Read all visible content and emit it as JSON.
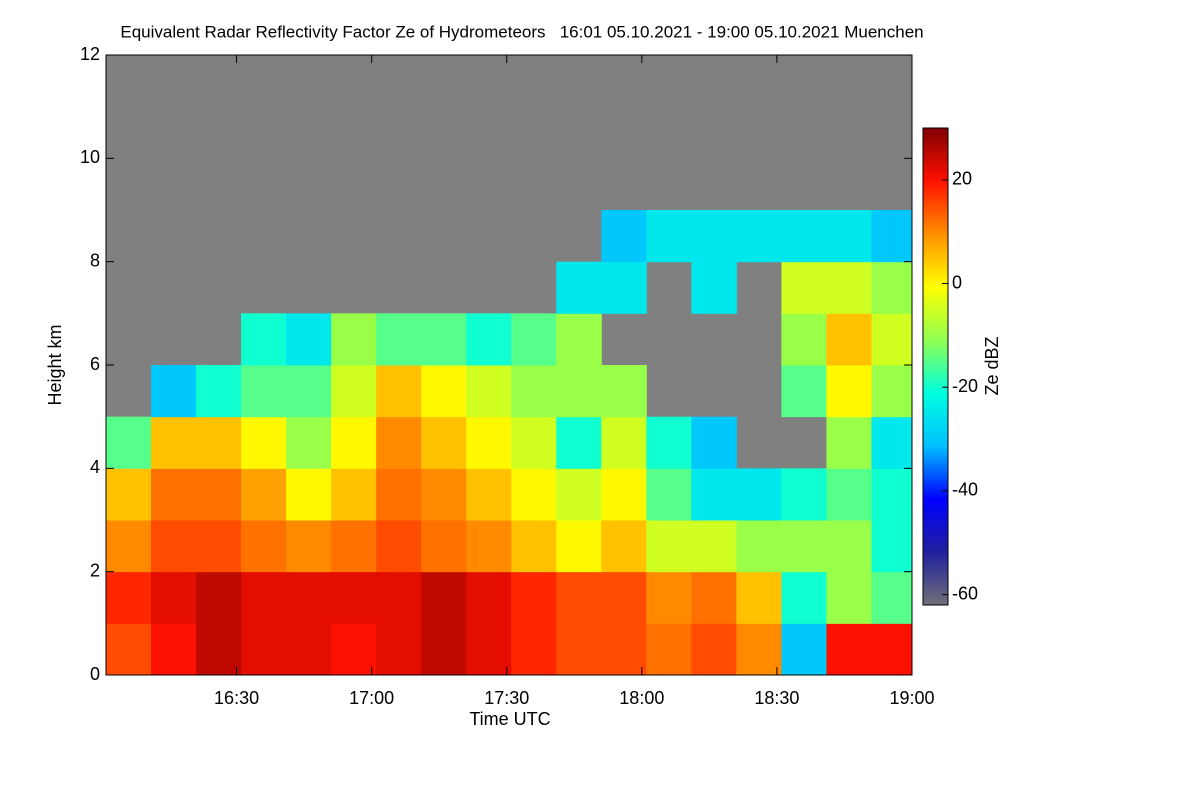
{
  "chart_data": {
    "type": "heatmap",
    "title": "Equivalent Radar Reflectivity Factor Ze of Hydrometeors   16:01 05.10.2021 - 19:00 05.10.2021 Muenchen",
    "x_label": "Time UTC",
    "y_label": "Height km",
    "colorbar_label": "Ze dBZ",
    "xlim": [
      961,
      1140
    ],
    "xticks": [
      {
        "value": 990,
        "label": "16:30"
      },
      {
        "value": 1020,
        "label": "17:00"
      },
      {
        "value": 1050,
        "label": "17:30"
      },
      {
        "value": 1080,
        "label": "18:00"
      },
      {
        "value": 1110,
        "label": "18:30"
      },
      {
        "value": 1140,
        "label": "19:00"
      }
    ],
    "ylim": [
      0,
      12
    ],
    "yticks": [
      0,
      2,
      4,
      6,
      8,
      10,
      12
    ],
    "zlim": [
      -62,
      30
    ],
    "zticks": [
      20,
      0,
      -20,
      -40,
      -60
    ],
    "background_color": "#808080",
    "colormap": [
      "#707078",
      "#2020a0",
      "#0000ff",
      "#00c0ff",
      "#00ffe0",
      "#90ff50",
      "#ffff00",
      "#ff9000",
      "#ff1000",
      "#800000"
    ],
    "x": [
      966,
      976,
      986,
      996,
      1006,
      1016,
      1026,
      1036,
      1046,
      1056,
      1066,
      1076,
      1086,
      1096,
      1106,
      1116,
      1126,
      1136
    ],
    "y": [
      0.5,
      1.5,
      2.5,
      3.5,
      4.5,
      5.5,
      6.5,
      7.5,
      8.5,
      9.5,
      10.5,
      11.5
    ],
    "z": [
      [
        15,
        18,
        10,
        5,
        -15,
        null,
        null,
        null,
        null,
        null,
        null,
        null
      ],
      [
        20,
        22,
        15,
        12,
        5,
        -30,
        null,
        null,
        null,
        null,
        null,
        null
      ],
      [
        25,
        25,
        15,
        12,
        5,
        -20,
        null,
        null,
        null,
        null,
        null,
        null
      ],
      [
        22,
        22,
        12,
        8,
        0,
        -15,
        -20,
        null,
        null,
        null,
        null,
        null
      ],
      [
        22,
        22,
        10,
        0,
        -10,
        -15,
        -25,
        null,
        null,
        null,
        null,
        null
      ],
      [
        20,
        22,
        12,
        5,
        0,
        -5,
        -10,
        null,
        null,
        null,
        null,
        null
      ],
      [
        22,
        22,
        15,
        12,
        10,
        5,
        -15,
        null,
        null,
        null,
        null,
        null
      ],
      [
        25,
        25,
        12,
        10,
        5,
        0,
        -15,
        null,
        null,
        null,
        null,
        null
      ],
      [
        22,
        22,
        10,
        5,
        0,
        -5,
        -20,
        null,
        null,
        null,
        null,
        null
      ],
      [
        18,
        18,
        5,
        0,
        -5,
        -10,
        -15,
        null,
        null,
        null,
        null,
        null
      ],
      [
        15,
        15,
        0,
        -5,
        -20,
        -10,
        -10,
        -25,
        null,
        null,
        null,
        null
      ],
      [
        15,
        15,
        5,
        0,
        -5,
        -10,
        null,
        -25,
        -30,
        null,
        null,
        null
      ],
      [
        12,
        10,
        -5,
        -15,
        -20,
        null,
        null,
        null,
        -25,
        null,
        null,
        null
      ],
      [
        15,
        12,
        -5,
        -25,
        -30,
        null,
        null,
        -25,
        -25,
        null,
        null,
        null
      ],
      [
        10,
        5,
        -10,
        -25,
        null,
        null,
        null,
        null,
        -25,
        null,
        null,
        null
      ],
      [
        -30,
        -20,
        -10,
        -20,
        null,
        -15,
        -10,
        -5,
        -25,
        null,
        null,
        null
      ],
      [
        20,
        -10,
        -10,
        -15,
        -10,
        0,
        5,
        -5,
        -25,
        null,
        null,
        null
      ],
      [
        20,
        -15,
        -20,
        -20,
        -25,
        -10,
        -5,
        -10,
        -30,
        null,
        null,
        null
      ]
    ]
  }
}
